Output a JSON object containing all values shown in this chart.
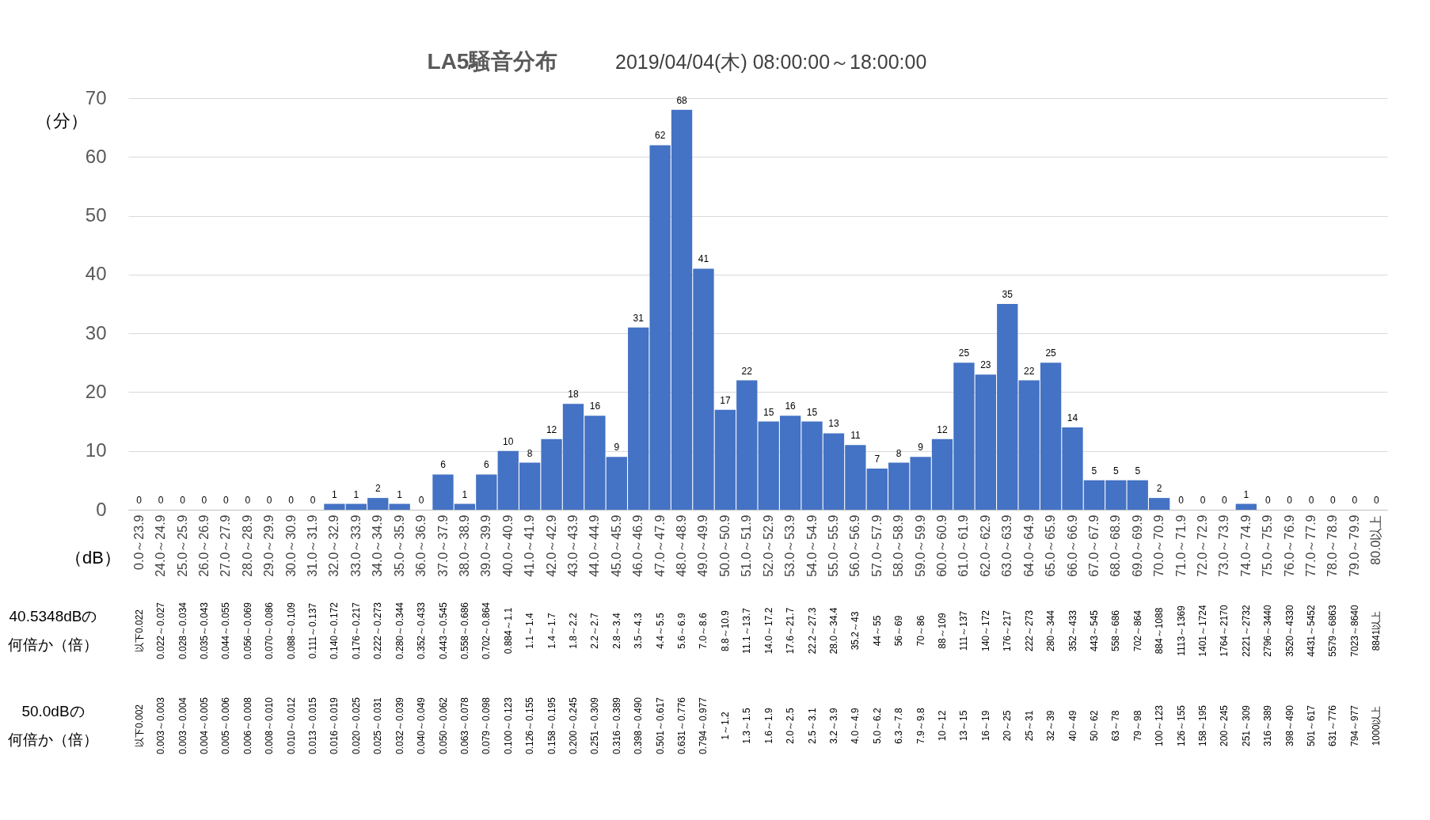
{
  "chart_data": {
    "type": "bar",
    "title": "LA5騒音分布",
    "subtitle": "2019/04/04(木) 08:00:00～18:00:00",
    "ylabel": "（分）",
    "xlabel": "（dB）",
    "categories": [
      "0.0～23.9",
      "24.0～24.9",
      "25.0～25.9",
      "26.0～26.9",
      "27.0～27.9",
      "28.0～28.9",
      "29.0～29.9",
      "30.0～30.9",
      "31.0～31.9",
      "32.0～32.9",
      "33.0～33.9",
      "34.0～34.9",
      "35.0～35.9",
      "36.0～36.9",
      "37.0～37.9",
      "38.0～38.9",
      "39.0～39.9",
      "40.0～40.9",
      "41.0～41.9",
      "42.0～42.9",
      "43.0～43.9",
      "44.0～44.9",
      "45.0～45.9",
      "46.0～46.9",
      "47.0～47.9",
      "48.0～48.9",
      "49.0～49.9",
      "50.0～50.9",
      "51.0～51.9",
      "52.0～52.9",
      "53.0～53.9",
      "54.0～54.9",
      "55.0～55.9",
      "56.0～56.9",
      "57.0～57.9",
      "58.0～58.9",
      "59.0～59.9",
      "60.0～60.9",
      "61.0～61.9",
      "62.0～62.9",
      "63.0～63.9",
      "64.0～64.9",
      "65.0～65.9",
      "66.0～66.9",
      "67.0～67.9",
      "68.0～68.9",
      "69.0～69.9",
      "70.0～70.9",
      "71.0～71.9",
      "72.0～72.9",
      "73.0～73.9",
      "74.0～74.9",
      "75.0～75.9",
      "76.0～76.9",
      "77.0～77.9",
      "78.0～78.9",
      "79.0～79.9",
      "80.0以上"
    ],
    "values": [
      0,
      0,
      0,
      0,
      0,
      0,
      0,
      0,
      0,
      1,
      1,
      2,
      1,
      0,
      6,
      1,
      6,
      10,
      8,
      12,
      18,
      16,
      9,
      31,
      62,
      68,
      41,
      17,
      22,
      15,
      16,
      15,
      13,
      11,
      7,
      8,
      9,
      12,
      25,
      23,
      35,
      22,
      25,
      14,
      5,
      5,
      5,
      2,
      0,
      0,
      0,
      1,
      0,
      0,
      0,
      0,
      0,
      0
    ],
    "color": "#4472c4",
    "ylim": [
      0,
      70
    ],
    "yticks": [
      0,
      10,
      20,
      30,
      40,
      50,
      60,
      70
    ],
    "grid": "y",
    "data_labels": true,
    "annotations": [
      "40.5348dBの",
      "何倍か（倍）",
      "以下0.022",
      "0.022～0.027",
      "0.028～0.034",
      "0.035～0.043",
      "0.044～0.055",
      "0.056～0.069",
      "0.070～0.086",
      "0.088～0.109",
      "0.111～0.137",
      "0.140～0.172",
      "0.176～0.217",
      "0.222～0.273",
      "0.280～0.344",
      "0.352～0.433",
      "0.443～0.545",
      "0.558～0.686",
      "0.702～0.864",
      "0.884～1.1",
      "1.1～1.4",
      "1.4～1.7",
      "1.8～2.2",
      "2.2～2.7",
      "2.8～3.4",
      "3.5～4.3",
      "4.4～5.5",
      "5.6～6.9",
      "7.0～8.6",
      "8.8～10.9",
      "11.1～13.7",
      "14.0～17.2",
      "17.6～21.7",
      "22.2～27.3",
      "28.0～34.4",
      "35.2～43",
      "44～55",
      "56～69",
      "70～86",
      "88～109",
      "111～137",
      "140～172",
      "176～217",
      "222～273",
      "280～344",
      "352～433",
      "443～545",
      "558～686",
      "702～864",
      "884～1088",
      "1113～1369",
      "1401～1724",
      "1764～2170",
      "2221～2732",
      "2796～3440",
      "3520～4330",
      "4431～5452",
      "5579～6863",
      "7023～8640",
      "8841以上",
      "50.0dBの",
      "何倍か（倍）",
      "以下0.002",
      "0.003～0.003",
      "0.003～0.004",
      "0.004～0.005",
      "0.005～0.006",
      "0.006～0.008",
      "0.008～0.010",
      "0.010～0.012",
      "0.013～0.015",
      "0.016～0.019",
      "0.020～0.025",
      "0.025～0.031",
      "0.032～0.039",
      "0.040～0.049",
      "0.050～0.062",
      "0.063～0.078",
      "0.079～0.098",
      "0.100～0.123",
      "0.126～0.155",
      "0.158～0.195",
      "0.200～0.245",
      "0.251～0.309",
      "0.316～0.389",
      "0.398～0.490",
      "0.501～0.617",
      "0.631～0.776",
      "0.794～0.977",
      "1～1.2",
      "1.3～1.5",
      "1.6～1.9",
      "2.0～2.5",
      "2.5～3.1",
      "3.2～3.9",
      "4.0～4.9",
      "5.0～6.2",
      "6.3～7.8",
      "7.9～9.8",
      "10～12",
      "13～15",
      "16～19",
      "20～25",
      "25～31",
      "32～39",
      "40～49",
      "50～62",
      "63～78",
      "79～98",
      "100～123",
      "126～155",
      "158～195",
      "200～245",
      "251～309",
      "316～389",
      "398～490",
      "501～617",
      "631～776",
      "794～977",
      "1000以上"
    ]
  }
}
